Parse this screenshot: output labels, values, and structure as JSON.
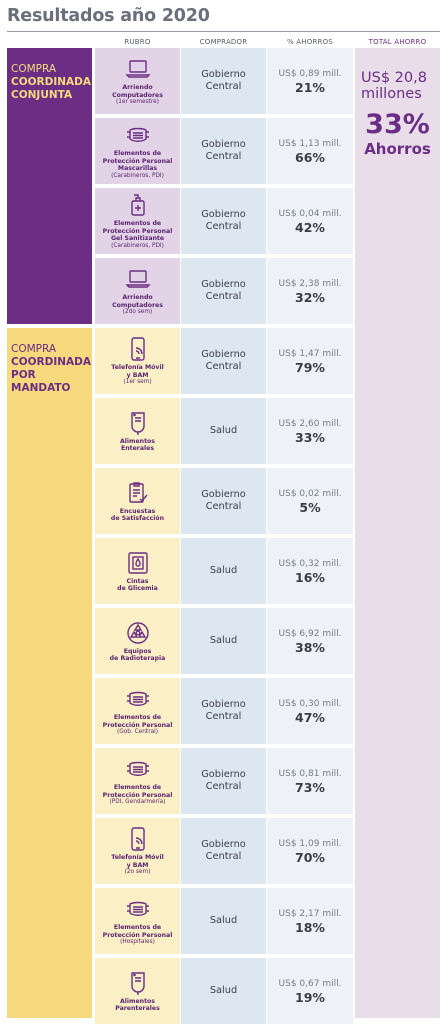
{
  "title": "Resultados año 2020",
  "headers": {
    "rubro": "RUBRO",
    "comprador": "COMPRADOR",
    "ahorros": "% AHORROS",
    "total": "TOTAL AHORRO"
  },
  "colors": {
    "purple_dark": "#6b2e84",
    "yellow": "#f5d97c",
    "light_purple": "#e3d3e6",
    "light_yellow": "#fbefc5",
    "light_blue": "#dde7f1",
    "light_grey": "#eef2f6",
    "total_bg": "#e8dde9"
  },
  "total": {
    "amount": "US$ 20,8 millones",
    "pct": "33%",
    "label": "Ahorros"
  },
  "groups": [
    {
      "line1": "COMPRA",
      "line2": "COORDINADA",
      "line3": "CONJUNTA"
    },
    {
      "line1": "COMPRA",
      "line2": "COORDINADA",
      "line3": "POR MANDATO"
    }
  ],
  "rows": [
    {
      "icon": "laptop-icon",
      "name": [
        "Arriendo",
        "Computadores"
      ],
      "sub": [
        "(1er semestre)"
      ],
      "comprador": "Gobierno Central",
      "monto": "US$ 0,89 mill.",
      "pct": "21%"
    },
    {
      "icon": "mask-icon",
      "name": [
        "Elementos de",
        "Protección Personal",
        "Mascarillas"
      ],
      "sub": [
        "(Carabineros, PDI)"
      ],
      "comprador": "Gobierno Central",
      "monto": "US$ 1,13 mill.",
      "pct": "66%"
    },
    {
      "icon": "sanitizer-icon",
      "name": [
        "Elementos de",
        "Protección Personal",
        "Gel Sanitizante"
      ],
      "sub": [
        "(Carabineros, PDI)"
      ],
      "comprador": "Gobierno Central",
      "monto": "US$ 0,04 mill.",
      "pct": "42%"
    },
    {
      "icon": "laptop-icon",
      "name": [
        "Arriendo",
        "Computadores"
      ],
      "sub": [
        "(2do sem)"
      ],
      "comprador": "Gobierno Central",
      "monto": "US$ 2,38 mill.",
      "pct": "32%"
    },
    {
      "icon": "phone-icon",
      "name": [
        "Telefonía Móvil",
        "y BAM"
      ],
      "sub": [
        "(1er sem)"
      ],
      "comprador": "Gobierno Central",
      "monto": "US$ 1,47 mill.",
      "pct": "79%"
    },
    {
      "icon": "iv-bag-icon",
      "name": [
        "Alimentos",
        "Enterales"
      ],
      "sub": [],
      "comprador": "Salud",
      "monto": "US$ 2,60 mill.",
      "pct": "33%"
    },
    {
      "icon": "survey-icon",
      "name": [
        "Encuestas",
        "de Satisfacción"
      ],
      "sub": [],
      "comprador": "Gobierno Central",
      "monto": "US$ 0,02 mill.",
      "pct": "5%"
    },
    {
      "icon": "glucose-strip-icon",
      "name": [
        "Cintas",
        "de Glicemia"
      ],
      "sub": [],
      "comprador": "Salud",
      "monto": "US$ 0,32 mill.",
      "pct": "16%"
    },
    {
      "icon": "radiation-icon",
      "name": [
        "Equipos",
        "de Radioterapia"
      ],
      "sub": [],
      "comprador": "Salud",
      "monto": "US$ 6,92 mill.",
      "pct": "38%"
    },
    {
      "icon": "mask-icon",
      "name": [
        "Elementos de",
        "Protección Personal"
      ],
      "sub": [
        "(Gob. Central)"
      ],
      "comprador": "Gobierno Central",
      "monto": "US$ 0,30 mill.",
      "pct": "47%"
    },
    {
      "icon": "mask-icon",
      "name": [
        "Elementos de",
        "Protección Personal"
      ],
      "sub": [
        "(PDI, Gendarmería)"
      ],
      "comprador": "Gobierno Central",
      "monto": "US$ 0,81 mill.",
      "pct": "73%"
    },
    {
      "icon": "phone-icon",
      "name": [
        "Telefonía Móvil",
        "y BAM"
      ],
      "sub": [
        "(2o sem)"
      ],
      "comprador": "Gobierno Central",
      "monto": "US$ 1,09 mill.",
      "pct": "70%"
    },
    {
      "icon": "mask-icon",
      "name": [
        "Elementos de",
        "Protección Personal"
      ],
      "sub": [
        "(Hospitales)"
      ],
      "comprador": "Salud",
      "monto": "US$ 2,17 mill.",
      "pct": "18%"
    },
    {
      "icon": "iv-bag-icon",
      "name": [
        "Alimentos",
        "Parenterales"
      ],
      "sub": [],
      "comprador": "Salud",
      "monto": "US$ 0,67 mill.",
      "pct": "19%"
    }
  ]
}
